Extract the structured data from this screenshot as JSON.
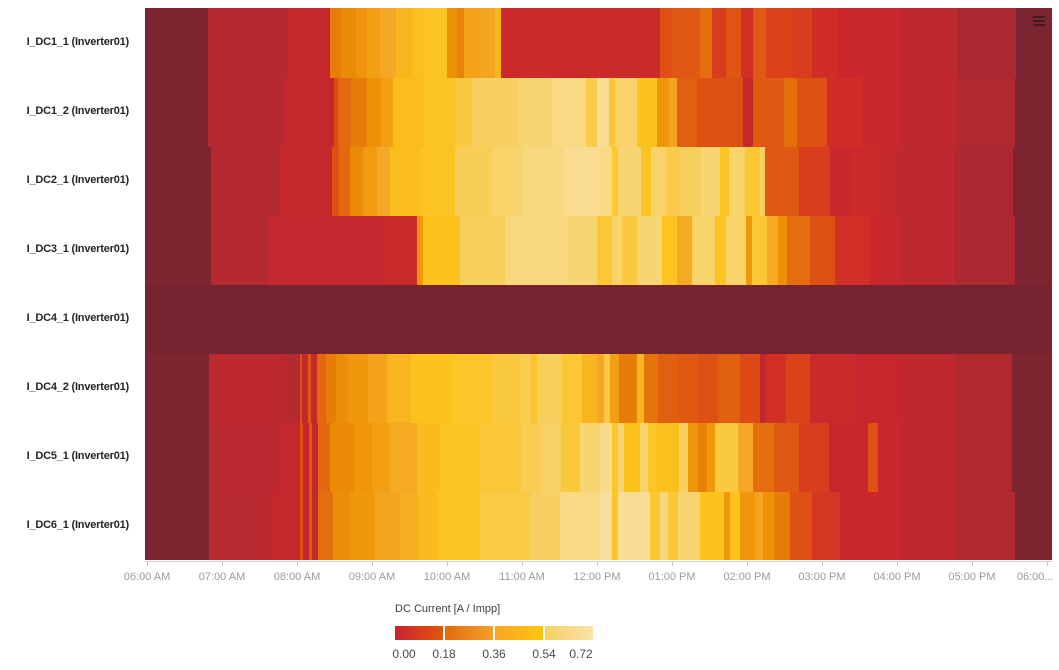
{
  "chart_data": {
    "type": "heatmap",
    "title": "",
    "xlabel": "",
    "ylabel": "",
    "grid": false,
    "legend_position": "bottom-left",
    "x_axis": {
      "range_hours": [
        5.973,
        18.067
      ],
      "tick_hours": [
        6,
        7,
        8,
        9,
        10,
        11,
        12,
        13,
        14,
        15,
        16,
        17,
        18
      ],
      "tick_labels": [
        "06:00 AM",
        "07:00 AM",
        "08:00 AM",
        "09:00 AM",
        "10:00 AM",
        "11:00 AM",
        "12:00 PM",
        "01:00 PM",
        "02:00 PM",
        "03:00 PM",
        "04:00 PM",
        "05:00 PM",
        "06:00..."
      ]
    },
    "y_axis": {
      "labels": [
        "I_DC1_1 (Inverter01)",
        "I_DC1_2 (Inverter01)",
        "I_DC2_1 (Inverter01)",
        "I_DC3_1 (Inverter01)",
        "I_DC4_1 (Inverter01)",
        "I_DC4_2 (Inverter01)",
        "I_DC5_1 (Inverter01)",
        "I_DC6_1 (Inverter01)"
      ]
    },
    "legend": {
      "title": "DC Current [A / Impp]",
      "tick_labels": [
        "0.00",
        "0.18",
        "0.36",
        "0.54",
        "0.72"
      ],
      "tick_values": [
        0.0,
        0.18,
        0.36,
        0.54,
        0.72
      ],
      "gradient_segments": [
        [
          "#c92132",
          "#e4570a"
        ],
        [
          "#e06c0c",
          "#f4a02c"
        ],
        [
          "#f7a825",
          "#fdc40e"
        ],
        [
          "#f7d061",
          "#f7e3a9"
        ]
      ]
    },
    "colormap_stops": [
      [
        0.0,
        "#74232f"
      ],
      [
        0.05,
        "#9a2730"
      ],
      [
        0.1,
        "#b52a31"
      ],
      [
        0.14,
        "#c9272b"
      ],
      [
        0.16,
        "#d22f25"
      ],
      [
        0.18,
        "#dd4a16"
      ],
      [
        0.22,
        "#e2670e"
      ],
      [
        0.27,
        "#ea8a06"
      ],
      [
        0.32,
        "#f19c0e"
      ],
      [
        0.36,
        "#f5a726"
      ],
      [
        0.4,
        "#fab41d"
      ],
      [
        0.45,
        "#fcc31c"
      ],
      [
        0.5,
        "#fbc940"
      ],
      [
        0.55,
        "#f7cf5d"
      ],
      [
        0.6,
        "#f8d573"
      ],
      [
        0.65,
        "#f9dc90"
      ],
      [
        0.72,
        "#f9e4ae"
      ]
    ],
    "series": [
      {
        "name": "I_DC1_1 (Inverter01)",
        "segments": [
          [
            5.973,
            0.01
          ],
          [
            6.81,
            0.1
          ],
          [
            7.88,
            0.13
          ],
          [
            8.44,
            0.25
          ],
          [
            8.59,
            0.27
          ],
          [
            8.79,
            0.3
          ],
          [
            8.93,
            0.33
          ],
          [
            9.11,
            0.36
          ],
          [
            9.32,
            0.4
          ],
          [
            9.53,
            0.44
          ],
          [
            9.69,
            0.46
          ],
          [
            10.0,
            0.29
          ],
          [
            10.13,
            0.26
          ],
          [
            10.23,
            0.34
          ],
          [
            10.43,
            0.35
          ],
          [
            10.64,
            0.41
          ],
          [
            10.72,
            0.145
          ],
          [
            12.84,
            0.185
          ],
          [
            13.0,
            0.2
          ],
          [
            13.37,
            0.23
          ],
          [
            13.53,
            0.17
          ],
          [
            13.72,
            0.195
          ],
          [
            13.92,
            0.16
          ],
          [
            14.08,
            0.2
          ],
          [
            14.25,
            0.175
          ],
          [
            14.59,
            0.17
          ],
          [
            14.87,
            0.155
          ],
          [
            15.2,
            0.14
          ],
          [
            16.04,
            0.12
          ],
          [
            16.8,
            0.08
          ],
          [
            17.59,
            0.01
          ]
        ]
      },
      {
        "name": "I_DC1_2 (Inverter01)",
        "segments": [
          [
            5.973,
            0.01
          ],
          [
            6.81,
            0.1
          ],
          [
            7.81,
            0.13
          ],
          [
            8.49,
            0.18
          ],
          [
            8.55,
            0.22
          ],
          [
            8.72,
            0.25
          ],
          [
            8.93,
            0.29
          ],
          [
            9.12,
            0.33
          ],
          [
            9.28,
            0.43
          ],
          [
            9.69,
            0.46
          ],
          [
            10.12,
            0.5
          ],
          [
            10.33,
            0.56
          ],
          [
            10.96,
            0.6
          ],
          [
            11.4,
            0.63
          ],
          [
            11.85,
            0.52
          ],
          [
            12.0,
            0.66
          ],
          [
            12.16,
            0.48
          ],
          [
            12.24,
            0.58
          ],
          [
            12.53,
            0.45
          ],
          [
            12.8,
            0.3
          ],
          [
            12.96,
            0.35
          ],
          [
            13.07,
            0.21
          ],
          [
            13.33,
            0.19
          ],
          [
            13.95,
            0.13
          ],
          [
            14.08,
            0.2
          ],
          [
            14.49,
            0.23
          ],
          [
            14.67,
            0.19
          ],
          [
            15.07,
            0.155
          ],
          [
            15.55,
            0.14
          ],
          [
            16.04,
            0.12
          ],
          [
            16.8,
            0.09
          ],
          [
            17.57,
            0.01
          ]
        ]
      },
      {
        "name": "I_DC2_1 (Inverter01)",
        "segments": [
          [
            5.973,
            0.01
          ],
          [
            6.85,
            0.1
          ],
          [
            7.77,
            0.13
          ],
          [
            8.47,
            0.19
          ],
          [
            8.56,
            0.22
          ],
          [
            8.7,
            0.27
          ],
          [
            8.88,
            0.32
          ],
          [
            9.07,
            0.36
          ],
          [
            9.24,
            0.43
          ],
          [
            9.64,
            0.46
          ],
          [
            10.11,
            0.54
          ],
          [
            10.6,
            0.58
          ],
          [
            11.0,
            0.62
          ],
          [
            11.56,
            0.65
          ],
          [
            12.04,
            0.63
          ],
          [
            12.2,
            0.48
          ],
          [
            12.28,
            0.6
          ],
          [
            12.59,
            0.46
          ],
          [
            12.72,
            0.58
          ],
          [
            12.92,
            0.52
          ],
          [
            13.12,
            0.55
          ],
          [
            13.39,
            0.6
          ],
          [
            13.64,
            0.46
          ],
          [
            13.76,
            0.58
          ],
          [
            13.97,
            0.48
          ],
          [
            14.17,
            0.56
          ],
          [
            14.24,
            0.2
          ],
          [
            14.69,
            0.17
          ],
          [
            15.11,
            0.14
          ],
          [
            15.39,
            0.145
          ],
          [
            15.77,
            0.13
          ],
          [
            16.04,
            0.115
          ],
          [
            16.77,
            0.085
          ],
          [
            17.55,
            0.01
          ]
        ]
      },
      {
        "name": "I_DC3_1 (Inverter01)",
        "segments": [
          [
            5.973,
            0.01
          ],
          [
            6.85,
            0.1
          ],
          [
            7.61,
            0.125
          ],
          [
            9.15,
            0.145
          ],
          [
            9.6,
            0.3
          ],
          [
            9.68,
            0.45
          ],
          [
            10.17,
            0.55
          ],
          [
            10.77,
            0.62
          ],
          [
            11.6,
            0.6
          ],
          [
            12.0,
            0.48
          ],
          [
            12.2,
            0.58
          ],
          [
            12.33,
            0.5
          ],
          [
            12.53,
            0.6
          ],
          [
            12.87,
            0.46
          ],
          [
            13.07,
            0.37
          ],
          [
            13.27,
            0.58
          ],
          [
            13.57,
            0.46
          ],
          [
            13.72,
            0.58
          ],
          [
            13.99,
            0.31
          ],
          [
            14.07,
            0.48
          ],
          [
            14.27,
            0.37
          ],
          [
            14.41,
            0.29
          ],
          [
            14.53,
            0.23
          ],
          [
            14.84,
            0.19
          ],
          [
            15.17,
            0.16
          ],
          [
            15.64,
            0.14
          ],
          [
            16.04,
            0.115
          ],
          [
            16.77,
            0.085
          ],
          [
            17.57,
            0.01
          ]
        ]
      },
      {
        "name": "I_DC4_1 (Inverter01)",
        "segments": [
          [
            5.973,
            0.0
          ]
        ]
      },
      {
        "name": "I_DC4_2 (Inverter01)",
        "segments": [
          [
            5.973,
            0.01
          ],
          [
            6.83,
            0.115
          ],
          [
            7.85,
            0.1
          ],
          [
            8.04,
            0.19
          ],
          [
            8.07,
            0.13
          ],
          [
            8.15,
            0.2
          ],
          [
            8.19,
            0.13
          ],
          [
            8.27,
            0.22
          ],
          [
            8.39,
            0.25
          ],
          [
            8.52,
            0.28
          ],
          [
            8.68,
            0.31
          ],
          [
            8.95,
            0.34
          ],
          [
            9.2,
            0.4
          ],
          [
            9.52,
            0.45
          ],
          [
            10.09,
            0.47
          ],
          [
            10.6,
            0.5
          ],
          [
            10.99,
            0.53
          ],
          [
            11.12,
            0.47
          ],
          [
            11.2,
            0.55
          ],
          [
            11.53,
            0.48
          ],
          [
            11.8,
            0.4
          ],
          [
            12.0,
            0.36
          ],
          [
            12.09,
            0.5
          ],
          [
            12.17,
            0.33
          ],
          [
            12.29,
            0.25
          ],
          [
            12.53,
            0.4
          ],
          [
            12.63,
            0.24
          ],
          [
            12.81,
            0.21
          ],
          [
            13.08,
            0.2
          ],
          [
            13.35,
            0.19
          ],
          [
            13.61,
            0.21
          ],
          [
            13.91,
            0.18
          ],
          [
            14.17,
            0.12
          ],
          [
            14.25,
            0.16
          ],
          [
            14.52,
            0.175
          ],
          [
            14.84,
            0.145
          ],
          [
            15.44,
            0.135
          ],
          [
            16.04,
            0.12
          ],
          [
            16.77,
            0.09
          ],
          [
            17.53,
            0.01
          ]
        ]
      },
      {
        "name": "I_DC5_1 (Inverter01)",
        "segments": [
          [
            5.973,
            0.01
          ],
          [
            6.83,
            0.11
          ],
          [
            7.75,
            0.13
          ],
          [
            8.04,
            0.19
          ],
          [
            8.08,
            0.13
          ],
          [
            8.16,
            0.2
          ],
          [
            8.2,
            0.13
          ],
          [
            8.28,
            0.22
          ],
          [
            8.44,
            0.27
          ],
          [
            8.76,
            0.3
          ],
          [
            9.0,
            0.33
          ],
          [
            9.24,
            0.37
          ],
          [
            9.6,
            0.42
          ],
          [
            9.91,
            0.46
          ],
          [
            10.44,
            0.49
          ],
          [
            10.99,
            0.53
          ],
          [
            11.25,
            0.57
          ],
          [
            11.52,
            0.49
          ],
          [
            11.77,
            0.6
          ],
          [
            12.04,
            0.64
          ],
          [
            12.2,
            0.47
          ],
          [
            12.28,
            0.6
          ],
          [
            12.36,
            0.45
          ],
          [
            12.57,
            0.58
          ],
          [
            12.68,
            0.47
          ],
          [
            12.79,
            0.44
          ],
          [
            13.09,
            0.56
          ],
          [
            13.21,
            0.3
          ],
          [
            13.35,
            0.26
          ],
          [
            13.47,
            0.31
          ],
          [
            13.57,
            0.5
          ],
          [
            13.88,
            0.36
          ],
          [
            14.08,
            0.23
          ],
          [
            14.36,
            0.2
          ],
          [
            14.69,
            0.17
          ],
          [
            15.09,
            0.14
          ],
          [
            15.61,
            0.19
          ],
          [
            15.75,
            0.14
          ],
          [
            16.04,
            0.12
          ],
          [
            16.77,
            0.09
          ],
          [
            17.53,
            0.01
          ]
        ]
      },
      {
        "name": "I_DC6_1 (Inverter01)",
        "segments": [
          [
            5.973,
            0.01
          ],
          [
            6.83,
            0.105
          ],
          [
            7.64,
            0.13
          ],
          [
            8.04,
            0.19
          ],
          [
            8.08,
            0.13
          ],
          [
            8.16,
            0.2
          ],
          [
            8.2,
            0.13
          ],
          [
            8.28,
            0.23
          ],
          [
            8.48,
            0.28
          ],
          [
            8.71,
            0.31
          ],
          [
            9.04,
            0.35
          ],
          [
            9.37,
            0.38
          ],
          [
            9.61,
            0.42
          ],
          [
            9.88,
            0.46
          ],
          [
            10.44,
            0.51
          ],
          [
            11.11,
            0.56
          ],
          [
            11.51,
            0.63
          ],
          [
            12.04,
            0.68
          ],
          [
            12.2,
            0.47
          ],
          [
            12.28,
            0.66
          ],
          [
            12.71,
            0.48
          ],
          [
            12.84,
            0.62
          ],
          [
            12.95,
            0.49
          ],
          [
            13.08,
            0.6
          ],
          [
            13.37,
            0.45
          ],
          [
            13.69,
            0.31
          ],
          [
            13.77,
            0.45
          ],
          [
            13.91,
            0.3
          ],
          [
            14.11,
            0.35
          ],
          [
            14.21,
            0.29
          ],
          [
            14.37,
            0.25
          ],
          [
            14.57,
            0.19
          ],
          [
            14.87,
            0.165
          ],
          [
            15.24,
            0.14
          ],
          [
            16.04,
            0.12
          ],
          [
            16.77,
            0.09
          ],
          [
            17.57,
            0.01
          ]
        ]
      }
    ],
    "icons": {
      "chart_menu": "hamburger-menu"
    }
  }
}
